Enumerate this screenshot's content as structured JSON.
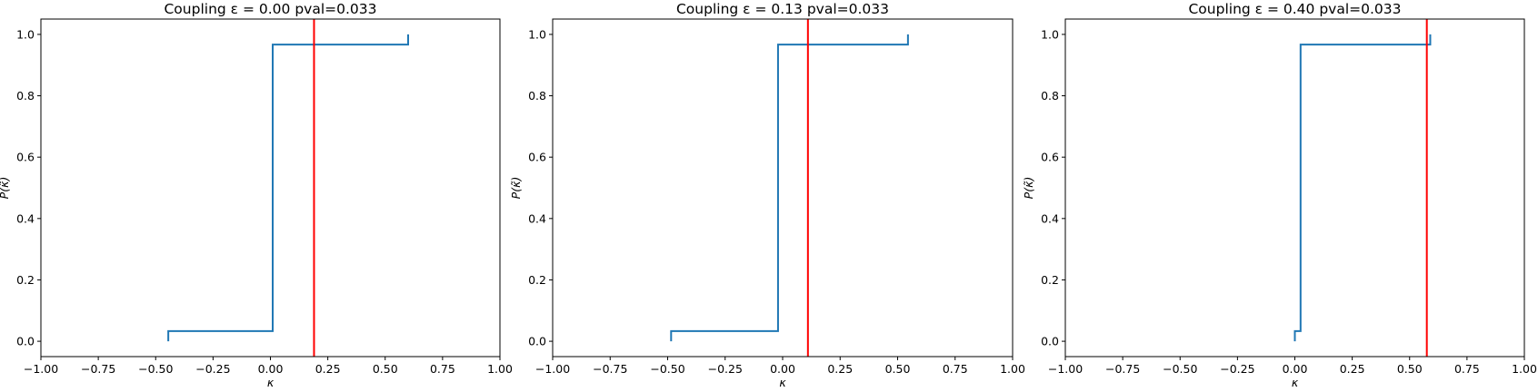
{
  "chart_data": [
    {
      "type": "line",
      "title": "Coupling ε = 0.00 pval=0.033",
      "xlabel": "κ",
      "ylabel": "P(κ̃)",
      "xlim": [
        -1.0,
        1.0
      ],
      "ylim": [
        -0.05,
        1.05
      ],
      "xticks": [
        "−1.00",
        "−0.75",
        "−0.50",
        "−0.25",
        "0.00",
        "0.25",
        "0.50",
        "0.75",
        "1.00"
      ],
      "yticks": [
        "0.0",
        "0.2",
        "0.4",
        "0.6",
        "0.8",
        "1.0"
      ],
      "grid": false,
      "series": [
        {
          "color": "#1f77b4",
          "step": true,
          "x": [
            -0.445,
            -0.445,
            0.01,
            0.01,
            0.6,
            0.6
          ],
          "y": [
            0.0,
            0.033,
            0.033,
            0.967,
            0.967,
            1.0
          ]
        }
      ],
      "vline": {
        "x": 0.19,
        "color": "#ff0000"
      }
    },
    {
      "type": "line",
      "title": "Coupling ε = 0.13 pval=0.033",
      "xlabel": "κ",
      "ylabel": "P(κ̃)",
      "xlim": [
        -1.0,
        1.0
      ],
      "ylim": [
        -0.05,
        1.05
      ],
      "xticks": [
        "−1.00",
        "−0.75",
        "−0.50",
        "−0.25",
        "0.00",
        "0.25",
        "0.50",
        "0.75",
        "1.00"
      ],
      "yticks": [
        "0.0",
        "0.2",
        "0.4",
        "0.6",
        "0.8",
        "1.0"
      ],
      "grid": false,
      "series": [
        {
          "color": "#1f77b4",
          "step": true,
          "x": [
            -0.485,
            -0.485,
            -0.02,
            -0.02,
            0.545,
            0.545
          ],
          "y": [
            0.0,
            0.033,
            0.033,
            0.967,
            0.967,
            1.0
          ]
        }
      ],
      "vline": {
        "x": 0.11,
        "color": "#ff0000"
      }
    },
    {
      "type": "line",
      "title": "Coupling ε = 0.40 pval=0.033",
      "xlabel": "κ",
      "ylabel": "P(κ̃)",
      "xlim": [
        -1.0,
        1.0
      ],
      "ylim": [
        -0.05,
        1.05
      ],
      "xticks": [
        "−1.00",
        "−0.75",
        "−0.50",
        "−0.25",
        "0.00",
        "0.25",
        "0.50",
        "0.75",
        "1.00"
      ],
      "yticks": [
        "0.0",
        "0.2",
        "0.4",
        "0.6",
        "0.8",
        "1.0"
      ],
      "grid": false,
      "series": [
        {
          "color": "#1f77b4",
          "step": true,
          "x": [
            0.0,
            0.0,
            0.025,
            0.025,
            0.59,
            0.59
          ],
          "y": [
            0.0,
            0.033,
            0.033,
            0.967,
            0.967,
            1.0
          ]
        }
      ],
      "vline": {
        "x": 0.575,
        "color": "#ff0000"
      }
    }
  ]
}
